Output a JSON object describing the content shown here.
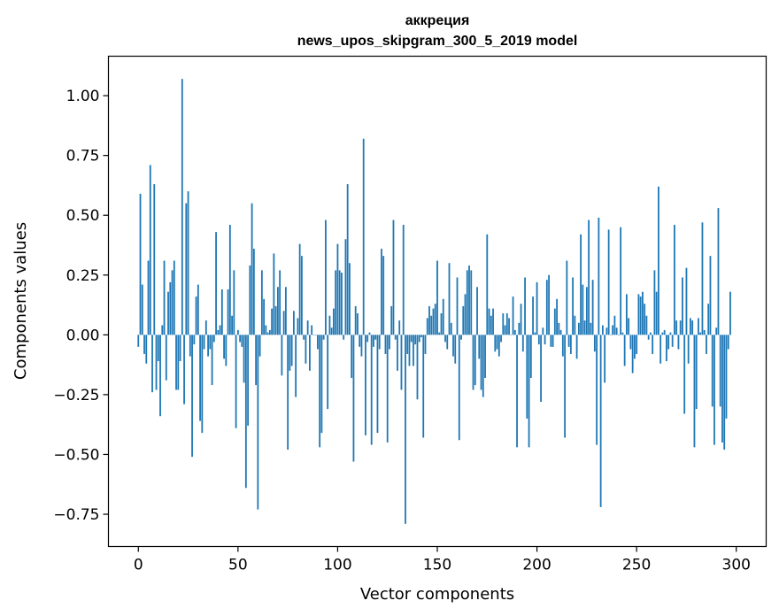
{
  "chart_data": {
    "type": "bar",
    "title": "аккреция",
    "subtitle": "news_upos_skipgram_300_5_2019 model",
    "xlabel": "Vector components",
    "ylabel": "Components values",
    "xlim": [
      -15,
      315
    ],
    "ylim": [
      -0.885,
      1.165
    ],
    "x_ticks": [
      0,
      50,
      100,
      150,
      200,
      250,
      300
    ],
    "x_tick_labels": [
      "0",
      "50",
      "100",
      "150",
      "200",
      "250",
      "300"
    ],
    "y_ticks": [
      -0.75,
      -0.5,
      -0.25,
      0.0,
      0.25,
      0.5,
      0.75,
      1.0
    ],
    "y_tick_labels": [
      "−0.75",
      "−0.50",
      "−0.25",
      "0.00",
      "0.25",
      "0.50",
      "0.75",
      "1.00"
    ],
    "grid": false,
    "color": "#1f77b4",
    "values": [
      -0.05,
      0.59,
      0.21,
      -0.08,
      -0.12,
      0.31,
      0.71,
      -0.24,
      0.63,
      -0.23,
      -0.11,
      -0.34,
      0.04,
      0.31,
      -0.19,
      0.18,
      0.22,
      0.27,
      0.31,
      -0.23,
      -0.23,
      -0.11,
      1.07,
      -0.29,
      0.55,
      0.6,
      -0.09,
      -0.51,
      -0.04,
      0.16,
      0.21,
      -0.36,
      -0.41,
      -0.06,
      0.06,
      -0.09,
      -0.06,
      -0.21,
      -0.03,
      0.43,
      0.02,
      0.04,
      0.19,
      -0.1,
      -0.13,
      0.19,
      0.46,
      0.08,
      0.27,
      -0.39,
      0.02,
      -0.03,
      -0.05,
      -0.2,
      -0.64,
      -0.38,
      0.29,
      0.55,
      0.36,
      -0.21,
      -0.73,
      -0.09,
      0.27,
      0.15,
      0.04,
      0.01,
      0.02,
      0.11,
      0.34,
      0.12,
      0.2,
      0.27,
      -0.17,
      0.1,
      0.2,
      -0.48,
      -0.15,
      -0.13,
      0.1,
      -0.26,
      0.07,
      0.38,
      0.33,
      -0.02,
      -0.12,
      0.06,
      -0.15,
      0.04,
      0.0,
      0.0,
      -0.06,
      -0.47,
      -0.41,
      -0.02,
      0.48,
      -0.31,
      0.08,
      0.03,
      0.11,
      0.27,
      0.38,
      0.27,
      0.26,
      -0.02,
      0.4,
      0.63,
      0.3,
      -0.18,
      -0.53,
      0.12,
      0.09,
      -0.05,
      -0.09,
      0.82,
      -0.42,
      -0.03,
      0.01,
      -0.46,
      -0.05,
      -0.02,
      -0.41,
      -0.06,
      0.36,
      0.33,
      -0.08,
      -0.45,
      -0.06,
      0.12,
      0.48,
      -0.02,
      -0.15,
      0.06,
      -0.23,
      0.46,
      -0.79,
      -0.08,
      -0.13,
      -0.03,
      -0.13,
      -0.04,
      -0.27,
      -0.03,
      -0.01,
      -0.43,
      -0.08,
      0.07,
      0.12,
      0.08,
      0.11,
      0.13,
      0.31,
      0.01,
      0.09,
      0.15,
      -0.03,
      -0.06,
      0.3,
      0.05,
      -0.09,
      -0.12,
      0.24,
      -0.44,
      -0.02,
      0.12,
      0.17,
      0.27,
      0.29,
      0.27,
      -0.23,
      -0.21,
      0.2,
      -0.1,
      -0.23,
      -0.26,
      -0.18,
      0.42,
      0.11,
      0.08,
      0.11,
      -0.07,
      -0.06,
      -0.09,
      -0.03,
      0.09,
      0.04,
      0.09,
      0.07,
      0.0,
      0.16,
      0.02,
      -0.47,
      0.05,
      0.13,
      -0.07,
      0.24,
      -0.35,
      -0.47,
      -0.18,
      0.16,
      0.01,
      0.22,
      -0.04,
      -0.28,
      0.03,
      -0.04,
      0.23,
      0.25,
      -0.05,
      -0.05,
      0.11,
      0.15,
      0.05,
      0.02,
      -0.09,
      -0.43,
      0.31,
      -0.05,
      -0.08,
      0.24,
      0.08,
      -0.1,
      0.05,
      0.42,
      0.21,
      0.06,
      0.2,
      0.48,
      0.05,
      0.23,
      -0.07,
      -0.46,
      0.49,
      -0.72,
      0.04,
      -0.2,
      0.03,
      0.44,
      0.0,
      0.04,
      0.08,
      0.03,
      0.0,
      0.45,
      0.01,
      -0.13,
      0.17,
      0.07,
      -0.06,
      -0.16,
      -0.1,
      -0.08,
      0.17,
      0.16,
      0.18,
      0.13,
      0.08,
      -0.02,
      0.01,
      -0.08,
      0.27,
      0.18,
      0.62,
      -0.12,
      0.01,
      0.02,
      -0.11,
      -0.06,
      0.01,
      -0.05,
      0.46,
      0.06,
      -0.06,
      0.06,
      0.24,
      -0.33,
      0.28,
      -0.12,
      0.07,
      0.06,
      -0.47,
      -0.31,
      0.07,
      0.01,
      0.47,
      0.02,
      -0.08,
      0.13,
      0.33,
      -0.3,
      -0.46,
      0.03,
      0.53,
      -0.3,
      -0.45,
      -0.48,
      -0.35,
      -0.06,
      0.18
    ]
  }
}
